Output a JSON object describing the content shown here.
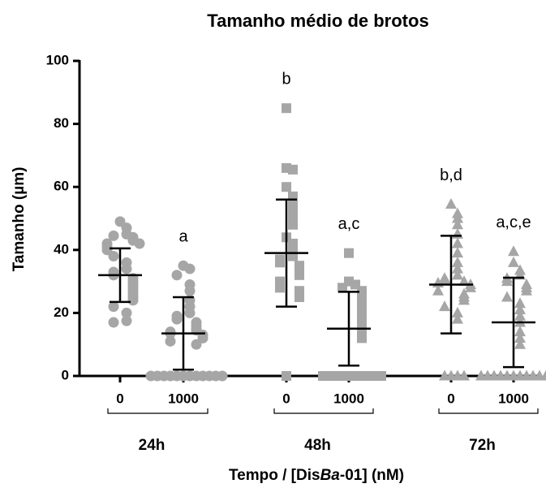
{
  "chart_data": {
    "type": "scatter-dot",
    "title": "Tamanho médio de brotos",
    "y_label": "Tamanho (µm)",
    "x_label": [
      "Tempo / [Dis",
      "Ba",
      "-01] (nM)"
    ],
    "ylim": [
      0,
      100
    ],
    "yticks": [
      0,
      20,
      40,
      60,
      80,
      100
    ],
    "color": "#a6a6a6",
    "groups": [
      {
        "label": "24h",
        "marker": "circle",
        "series": [
          {
            "category": "0",
            "mean": 32,
            "sd": 8.5,
            "values": [
              49,
              47,
              45,
              44.5,
              44,
              43,
              42,
              42,
              41,
              40,
              38,
              36,
              34,
              33,
              32,
              31,
              30,
              29,
              28,
              27,
              26,
              25,
              24,
              22,
              20,
              17.5,
              17
            ]
          },
          {
            "category": "1000",
            "mean": 13.5,
            "sd": 11.5,
            "annotation": "a",
            "values": [
              35,
              34,
              32,
              29,
              27,
              24,
              22,
              20,
              19,
              18,
              17,
              16,
              15,
              14.5,
              14,
              13.5,
              13,
              12,
              11,
              10,
              0,
              0,
              0,
              0,
              0,
              0,
              0,
              0,
              0,
              0,
              0,
              0
            ]
          }
        ]
      },
      {
        "label": "48h",
        "marker": "square",
        "series": [
          {
            "category": "0",
            "mean": 39,
            "sd": 17,
            "annotation": "b",
            "values": [
              85,
              66,
              65.5,
              60,
              57,
              54,
              51,
              48,
              44,
              42,
              40,
              38,
              37,
              36,
              35,
              34,
              33,
              32,
              30,
              29,
              28,
              27,
              26,
              25,
              0
            ]
          },
          {
            "category": "1000",
            "mean": 15,
            "sd": 11.7,
            "annotation": "a,c",
            "values": [
              39,
              30,
              29,
              28,
              27,
              26,
              25,
              24,
              23,
              22,
              21,
              20,
              19,
              18,
              17,
              16,
              15,
              14,
              13,
              12,
              0,
              0,
              0,
              0,
              0,
              0,
              0,
              0,
              0,
              0
            ]
          }
        ]
      },
      {
        "label": "72h",
        "marker": "triangle",
        "series": [
          {
            "category": "0",
            "mean": 29,
            "sd": 15.5,
            "annotation": "b,d",
            "values": [
              54.5,
              51.5,
              50,
              48,
              45,
              42,
              39,
              36,
              34,
              32,
              31,
              30.5,
              30,
              29.5,
              29,
              28,
              27,
              26,
              25,
              24,
              22,
              20,
              18,
              0,
              0,
              0,
              0
            ]
          },
          {
            "category": "1000",
            "mean": 17,
            "sd": 14.2,
            "annotation": "a,c,e",
            "values": [
              39.5,
              36,
              33.5,
              32,
              31,
              30,
              29,
              28,
              27,
              25,
              23,
              21,
              19,
              17,
              14,
              12,
              10,
              0,
              0,
              0,
              0,
              0,
              0,
              0,
              0,
              0,
              0,
              0,
              0
            ]
          }
        ]
      }
    ]
  }
}
